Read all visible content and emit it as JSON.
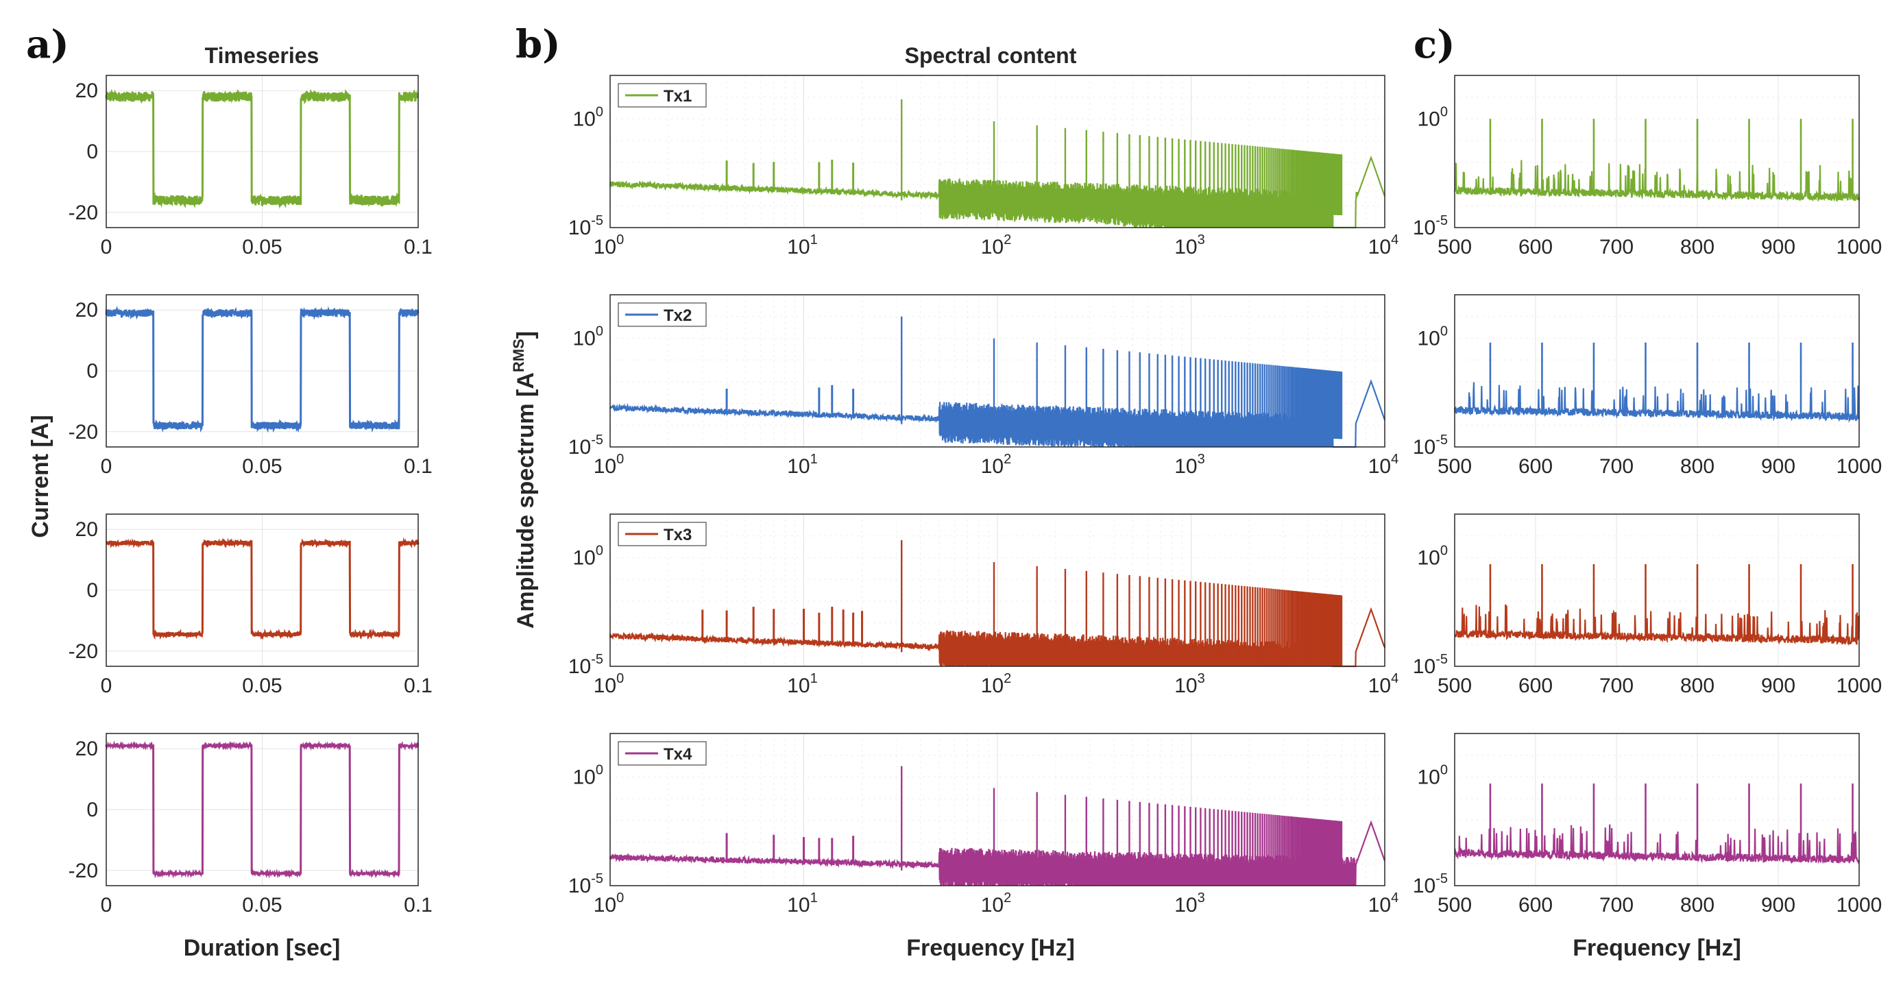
{
  "figure": {
    "panel_letters": [
      "a)",
      "b)",
      "c)"
    ],
    "titles": {
      "timeseries": "Timeseries",
      "spectral": "Spectral content"
    },
    "labels": {
      "current": "Current [A]",
      "amplitude": "Amplitude spectrum [A",
      "amplitude_sup": "RMS",
      "amplitude_close": "]",
      "duration": "Duration [sec]",
      "frequency": "Frequency [Hz]"
    }
  },
  "chart_data": [
    {
      "type": "line",
      "panel": "a",
      "title": "Timeseries",
      "xlabel": "Duration [sec]",
      "ylabel": "Current [A]",
      "xlim": [
        0,
        0.1
      ],
      "ylim": [
        -25,
        25
      ],
      "xticks": [
        0,
        0.05,
        0.1
      ],
      "xtick_labels": [
        "0",
        "0.05",
        "0.1"
      ],
      "yticks": [
        20,
        0,
        -20
      ],
      "ytick_labels": [
        "20",
        "0",
        "-20"
      ],
      "grid": true,
      "series": [
        {
          "name": "Tx1",
          "color": "#77ac30",
          "waveform": "square",
          "period_sec": 0.0315,
          "high": 18,
          "low": -16,
          "high_noise": 1.6,
          "low_noise": 1.6,
          "start_high": true
        },
        {
          "name": "Tx2",
          "color": "#3b72c4",
          "waveform": "square",
          "period_sec": 0.0315,
          "high": 19,
          "low": -18,
          "high_noise": 1.2,
          "low_noise": 1.2,
          "start_high": true
        },
        {
          "name": "Tx3",
          "color": "#b63a1b",
          "waveform": "square",
          "period_sec": 0.0315,
          "high": 15.5,
          "low": -14.5,
          "high_noise": 0.7,
          "low_noise": 0.7,
          "start_high": true
        },
        {
          "name": "Tx4",
          "color": "#a4378c",
          "waveform": "square",
          "period_sec": 0.0315,
          "high": 21,
          "low": -21,
          "high_noise": 0.4,
          "low_noise": 0.4,
          "start_high": true
        }
      ]
    },
    {
      "type": "line",
      "panel": "b",
      "title": "Spectral content",
      "xlabel": "Frequency [Hz]",
      "ylabel": "Amplitude spectrum [A^RMS]",
      "xscale": "log",
      "yscale": "log",
      "xlim": [
        1,
        10000
      ],
      "ylim_exp": [
        -5,
        2
      ],
      "x_decades": [
        0,
        1,
        2,
        3,
        4
      ],
      "y_ticks_exp": [
        0,
        -5
      ],
      "legend_location": "top-left",
      "fundamental_hz": 32,
      "resonance_hz": 8500,
      "grid": true,
      "series": [
        {
          "name": "Tx1",
          "color": "#77ac30",
          "base_exp": -3.0,
          "base_slope": -0.3,
          "peak_exp": 0.9,
          "low_peaks_hz": [
            4,
            5.5,
            7,
            12,
            14,
            18
          ],
          "low_peak_exp": -2.0,
          "notch_hz": 6200
        },
        {
          "name": "Tx2",
          "color": "#3b72c4",
          "base_exp": -3.2,
          "base_slope": -0.3,
          "peak_exp": 1.0,
          "low_peaks_hz": [
            4,
            12,
            14,
            18
          ],
          "low_peak_exp": -2.2,
          "notch_hz": 6200
        },
        {
          "name": "Tx3",
          "color": "#b63a1b",
          "base_exp": -3.6,
          "base_slope": -0.3,
          "peak_exp": 0.8,
          "low_peaks_hz": [
            3,
            4,
            5.5,
            7,
            10,
            12,
            14,
            16,
            18,
            20
          ],
          "low_peak_exp": -2.4,
          "notch_hz": 6200
        },
        {
          "name": "Tx4",
          "color": "#a4378c",
          "base_exp": -3.7,
          "base_slope": -0.2,
          "peak_exp": 0.5,
          "low_peaks_hz": [
            4,
            7,
            10,
            12,
            14,
            18
          ],
          "low_peak_exp": -2.7,
          "notch_hz": 9000
        }
      ]
    },
    {
      "type": "line",
      "panel": "c",
      "xlabel": "Frequency [Hz]",
      "xlim": [
        500,
        1000
      ],
      "xticks": [
        500,
        600,
        700,
        800,
        900,
        1000
      ],
      "xtick_labels": [
        "500",
        "600",
        "700",
        "800",
        "900",
        "1000"
      ],
      "yscale": "log",
      "ylim_exp": [
        -5,
        2
      ],
      "y_ticks_exp": [
        0,
        -5
      ],
      "major_peaks_hz": [
        544,
        608,
        672,
        736,
        800,
        864,
        928,
        992
      ],
      "grid": true,
      "series": [
        {
          "name": "Tx1",
          "color": "#77ac30",
          "base_exp": -3.3,
          "peak_exp": 0.0
        },
        {
          "name": "Tx2",
          "color": "#3b72c4",
          "base_exp": -3.3,
          "peak_exp": -0.2
        },
        {
          "name": "Tx3",
          "color": "#b63a1b",
          "base_exp": -3.5,
          "peak_exp": -0.3
        },
        {
          "name": "Tx4",
          "color": "#a4378c",
          "base_exp": -3.5,
          "peak_exp": -0.3
        }
      ]
    }
  ]
}
